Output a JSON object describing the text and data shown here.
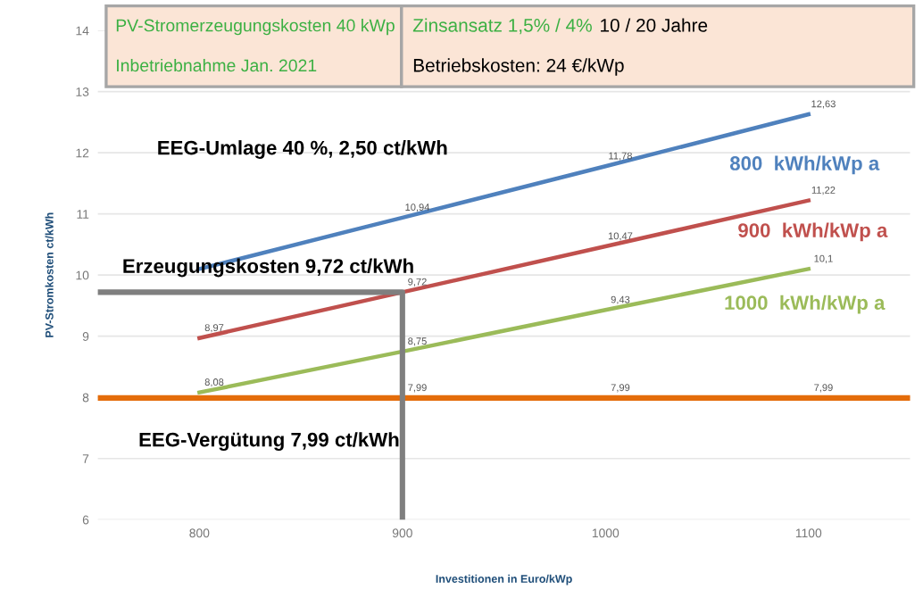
{
  "chart_data": {
    "type": "line",
    "xlabel": "Investitionen in Euro/kWp",
    "ylabel": "PV-Stromkosten ct/kWh",
    "x": [
      800,
      900,
      1000,
      1100
    ],
    "series": [
      {
        "name": "800  kWh/kWp a",
        "color": "#4f81bd",
        "values": [
          10.1,
          10.94,
          11.78,
          12.63
        ],
        "value_labels": [
          null,
          "10,94",
          "11,78",
          "12,63"
        ]
      },
      {
        "name": "900  kWh/kWp a",
        "color": "#c0504d",
        "values": [
          8.97,
          9.72,
          10.47,
          11.22
        ],
        "value_labels": [
          "8,97",
          "9,72",
          "10,47",
          "11,22"
        ]
      },
      {
        "name": "1000  kWh/kWp a",
        "color": "#9bbb59",
        "values": [
          8.08,
          8.75,
          9.43,
          10.1
        ],
        "value_labels": [
          "8,08",
          "8,75",
          "9,43",
          "10,1"
        ]
      },
      {
        "color": "#e46c0a",
        "x": [
          750,
          800,
          900,
          1000,
          1100,
          1150
        ],
        "values": [
          7.99,
          7.99,
          7.99,
          7.99,
          7.99,
          7.99
        ],
        "value_labels": [
          null,
          null,
          "7,99",
          "7,99",
          "7,99",
          null
        ]
      },
      {
        "color": "#7f7f7f",
        "x": [
          750,
          900,
          900
        ],
        "values": [
          9.72,
          9.72,
          6
        ]
      }
    ],
    "annotations": [
      "PV-Stromerzeugungskosten 40 kWp",
      "Inbetriebnahme Jan. 2021",
      "Zinsansatz 1,5% / 4%",
      "10 / 20 Jahre",
      "Betriebskosten: 24 €/kWp",
      "EEG-Umlage 40 %, 2,50 ct/kWh",
      "Erzeugungskosten 9,72 ct/kWh",
      "EEG-Vergütung 7,99 ct/kWh"
    ],
    "xlim": [
      750,
      1150
    ],
    "ylim": [
      6,
      14
    ],
    "xticks": [
      800,
      900,
      1000,
      1100
    ],
    "yticks": [
      6,
      7,
      8,
      9,
      10,
      11,
      12,
      13,
      14
    ],
    "grid": "y",
    "legend": false,
    "marker": "none",
    "line_style": "solid"
  }
}
